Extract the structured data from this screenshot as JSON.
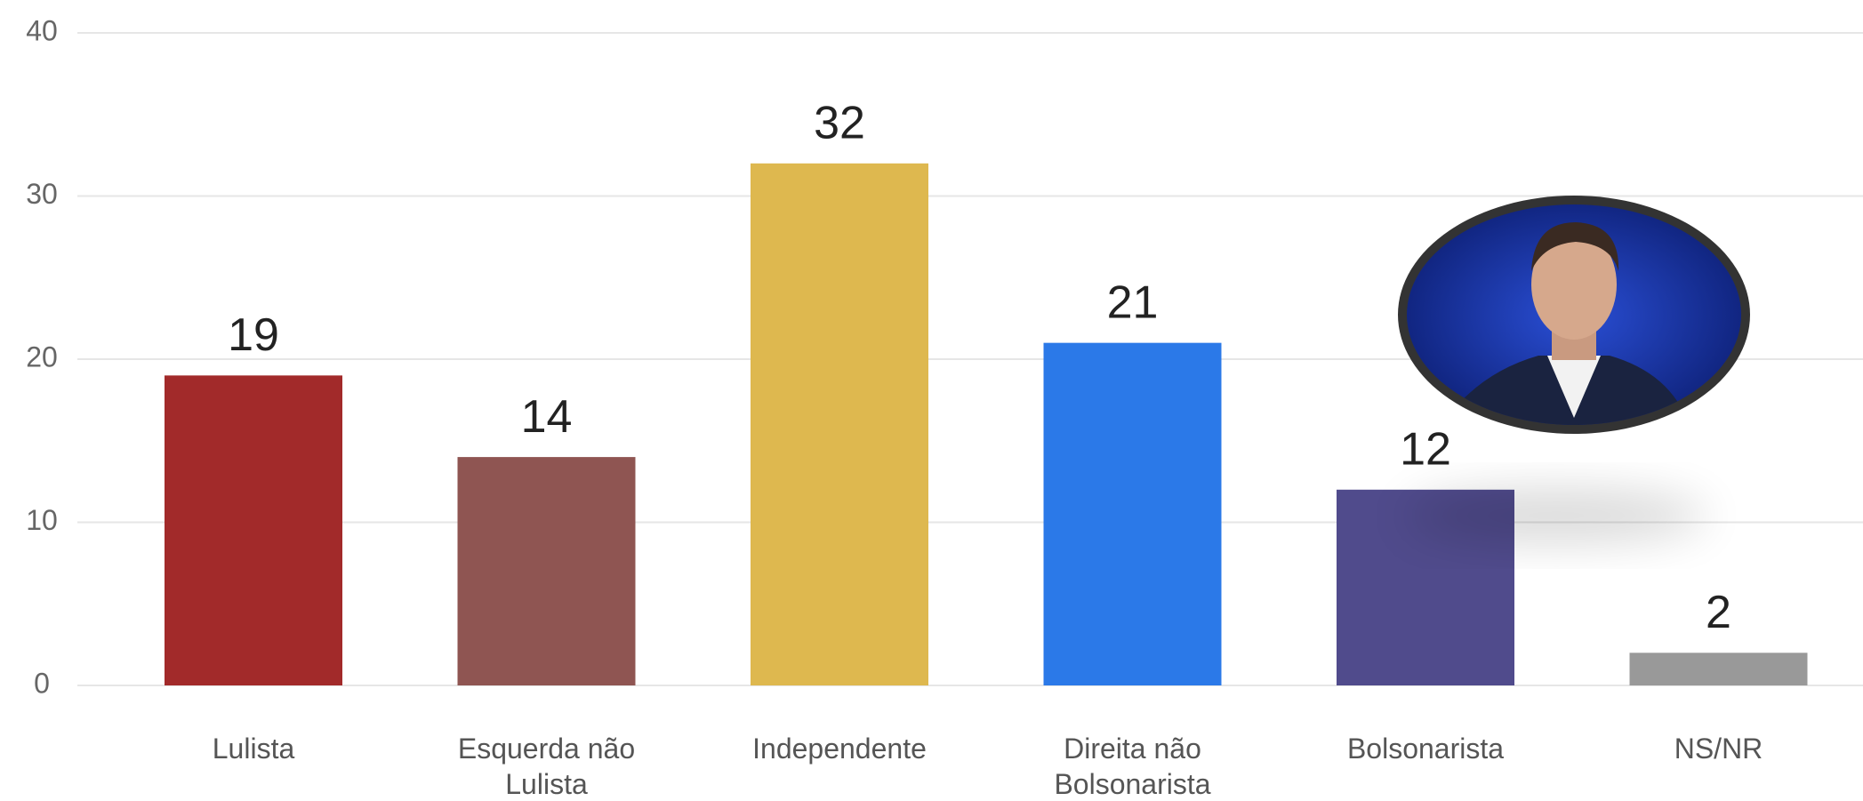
{
  "chart_data": {
    "type": "bar",
    "categories": [
      "Lulista",
      "Esquerda não Lulista",
      "Independente",
      "Direita não Bolsonarista",
      "Bolsonarista",
      "NS/NR"
    ],
    "values": [
      19,
      14,
      32,
      21,
      12,
      2
    ],
    "colors": [
      "#a22a2a",
      "#8f5552",
      "#deb84f",
      "#2b79e8",
      "#504b8c",
      "#999999"
    ],
    "ylim": [
      0,
      40
    ],
    "yticks": [
      0,
      10,
      20,
      30,
      40
    ],
    "grid": true
  }
}
